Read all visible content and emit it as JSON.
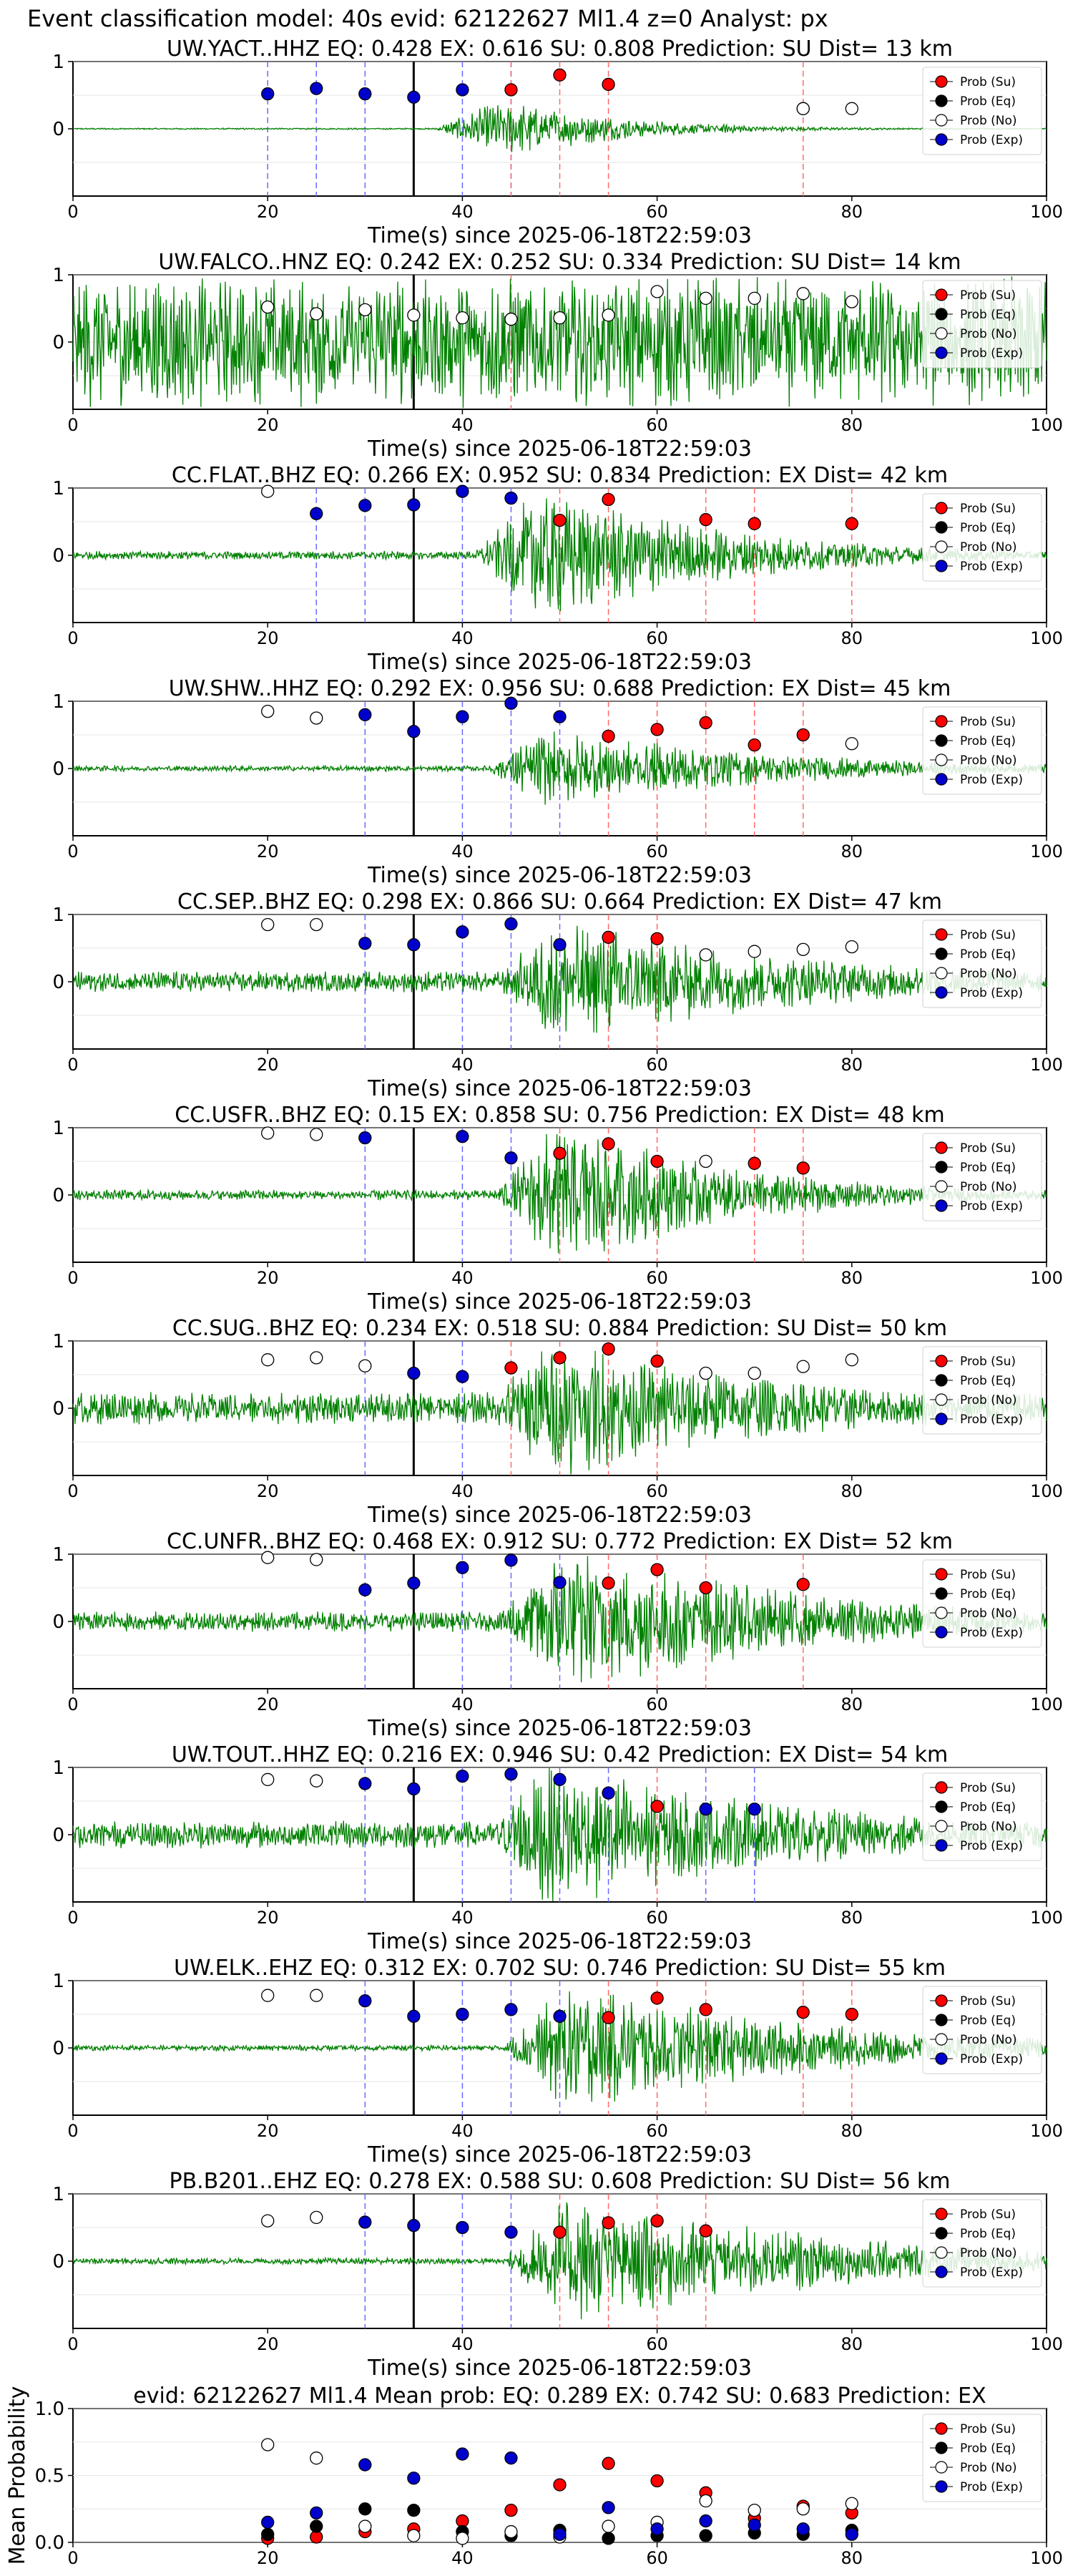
{
  "figure_title": "Event classification model: 40s evid: 62122627 Ml1.4 z=0 Analyst: px",
  "xlabel": "Time(s) since 2025-06-18T22:59:03",
  "legend": [
    "Prob (Su)",
    "Prob (Eq)",
    "Prob (No)",
    "Prob (Exp)"
  ],
  "colors": {
    "su": "#ff0000",
    "eq": "#000000",
    "no": "#ffffff",
    "exp": "#0000cd",
    "trace": "#008000",
    "marker_line": "#000000"
  },
  "chart_data": [
    {
      "type": "line",
      "title": "UW.YACT..HHZ   EQ: 0.428  EX: 0.616  SU: 0.808   Prediction: SU    Dist= 13 km",
      "xlim": [
        0,
        100
      ],
      "ylim": [
        -1,
        1
      ],
      "yticks": [
        "1",
        "0"
      ],
      "xticks": [
        "0",
        "20",
        "40",
        "60",
        "80",
        "100"
      ],
      "amp": 0.35,
      "env": "event",
      "start": 37,
      "end": 62,
      "noise": 0.03,
      "marker": 35,
      "exp_lines": [
        20,
        25,
        30,
        35,
        40,
        45
      ],
      "su_lines": [
        45,
        50,
        55,
        75
      ],
      "points": {
        "no": [
          [
            75,
            0.3
          ],
          [
            80,
            0.3
          ]
        ],
        "exp": [
          [
            20,
            0.52
          ],
          [
            25,
            0.6
          ],
          [
            30,
            0.52
          ],
          [
            35,
            0.47
          ],
          [
            40,
            0.58
          ]
        ],
        "su": [
          [
            45,
            0.58
          ],
          [
            50,
            0.8
          ],
          [
            55,
            0.66
          ],
          [
            75,
            0.3
          ]
        ]
      }
    },
    {
      "type": "line",
      "title": "UW.FALCO..HNZ   EQ: 0.242  EX: 0.252  SU: 0.334   Prediction: SU    Dist= 14 km",
      "xlim": [
        0,
        100
      ],
      "ylim": [
        -1,
        1
      ],
      "yticks": [
        "1",
        "0"
      ],
      "xticks": [
        "0",
        "20",
        "40",
        "60",
        "80",
        "100"
      ],
      "amp": 0.9,
      "env": "flat",
      "start": 0,
      "end": 100,
      "noise": 0.7,
      "marker": 35,
      "exp_lines": [],
      "su_lines": [
        45
      ],
      "points": {
        "no": [
          [
            20,
            0.52
          ],
          [
            25,
            0.42
          ],
          [
            30,
            0.48
          ],
          [
            35,
            0.4
          ],
          [
            40,
            0.36
          ],
          [
            45,
            0.34
          ],
          [
            50,
            0.36
          ],
          [
            55,
            0.4
          ],
          [
            60,
            0.75
          ],
          [
            65,
            0.65
          ],
          [
            70,
            0.65
          ],
          [
            75,
            0.72
          ],
          [
            80,
            0.6
          ]
        ],
        "exp": [],
        "su": [
          [
            45,
            0.34
          ]
        ]
      }
    },
    {
      "type": "line",
      "title": "CC.FLAT..BHZ   EQ: 0.266  EX: 0.952  SU: 0.834   Prediction: EX    Dist= 42 km",
      "xlim": [
        0,
        100
      ],
      "ylim": [
        -1,
        1
      ],
      "yticks": [
        "1",
        "0"
      ],
      "xticks": [
        "0",
        "20",
        "40",
        "60",
        "80",
        "100"
      ],
      "amp": 0.85,
      "env": "event",
      "start": 41,
      "end": 82,
      "noise": 0.07,
      "marker": 35,
      "exp_lines": [
        25,
        30,
        35,
        40,
        45
      ],
      "su_lines": [
        50,
        55,
        65,
        70,
        80
      ],
      "points": {
        "no": [
          [
            20,
            0.95
          ]
        ],
        "exp": [
          [
            25,
            0.62
          ],
          [
            30,
            0.74
          ],
          [
            35,
            0.75
          ],
          [
            40,
            0.95
          ],
          [
            45,
            0.85
          ]
        ],
        "su": [
          [
            50,
            0.52
          ],
          [
            55,
            0.83
          ],
          [
            65,
            0.53
          ],
          [
            70,
            0.47
          ],
          [
            80,
            0.47
          ]
        ]
      }
    },
    {
      "type": "line",
      "title": "UW.SHW..HHZ   EQ: 0.292  EX: 0.956  SU: 0.688   Prediction: EX    Dist= 45 km",
      "xlim": [
        0,
        100
      ],
      "ylim": [
        -1,
        1
      ],
      "yticks": [
        "1",
        "0"
      ],
      "xticks": [
        "0",
        "20",
        "40",
        "60",
        "80",
        "100"
      ],
      "amp": 0.5,
      "env": "event",
      "start": 42,
      "end": 92,
      "noise": 0.08,
      "marker": 35,
      "exp_lines": [
        30,
        35,
        40,
        45,
        50
      ],
      "su_lines": [
        55,
        60,
        65,
        70,
        75
      ],
      "points": {
        "no": [
          [
            20,
            0.85
          ],
          [
            25,
            0.75
          ],
          [
            80,
            0.37
          ]
        ],
        "exp": [
          [
            30,
            0.8
          ],
          [
            35,
            0.55
          ],
          [
            40,
            0.77
          ],
          [
            45,
            0.97
          ],
          [
            50,
            0.77
          ]
        ],
        "su": [
          [
            55,
            0.48
          ],
          [
            60,
            0.58
          ],
          [
            65,
            0.68
          ],
          [
            70,
            0.35
          ],
          [
            75,
            0.5
          ]
        ]
      }
    },
    {
      "type": "line",
      "title": "CC.SEP..BHZ   EQ: 0.298  EX: 0.866  SU: 0.664   Prediction: EX    Dist= 47 km",
      "xlim": [
        0,
        100
      ],
      "ylim": [
        -1,
        1
      ],
      "yticks": [
        "1",
        "0"
      ],
      "xticks": [
        "0",
        "20",
        "40",
        "60",
        "80",
        "100"
      ],
      "amp": 0.8,
      "env": "event",
      "start": 43,
      "end": 100,
      "noise": 0.18,
      "marker": 35,
      "exp_lines": [
        30,
        35,
        40,
        45,
        50
      ],
      "su_lines": [
        55,
        60
      ],
      "points": {
        "no": [
          [
            20,
            0.85
          ],
          [
            25,
            0.85
          ],
          [
            65,
            0.4
          ],
          [
            70,
            0.45
          ],
          [
            75,
            0.48
          ],
          [
            80,
            0.52
          ]
        ],
        "exp": [
          [
            30,
            0.57
          ],
          [
            35,
            0.55
          ],
          [
            40,
            0.74
          ],
          [
            45,
            0.86
          ],
          [
            50,
            0.55
          ]
        ],
        "su": [
          [
            55,
            0.66
          ],
          [
            60,
            0.64
          ]
        ]
      }
    },
    {
      "type": "line",
      "title": "CC.USFR..BHZ   EQ: 0.15  EX: 0.858  SU: 0.756   Prediction: EX    Dist= 48 km",
      "xlim": [
        0,
        100
      ],
      "ylim": [
        -1,
        1
      ],
      "yticks": [
        "1",
        "0"
      ],
      "xticks": [
        "0",
        "20",
        "40",
        "60",
        "80",
        "100"
      ],
      "amp": 0.9,
      "env": "event",
      "start": 43,
      "end": 82,
      "noise": 0.08,
      "marker": 35,
      "exp_lines": [
        30,
        35,
        40,
        45
      ],
      "su_lines": [
        50,
        55,
        60,
        70,
        75
      ],
      "points": {
        "no": [
          [
            20,
            0.92
          ],
          [
            25,
            0.9
          ],
          [
            65,
            0.5
          ]
        ],
        "exp": [
          [
            30,
            0.85
          ],
          [
            40,
            0.87
          ],
          [
            45,
            0.55
          ]
        ],
        "su": [
          [
            50,
            0.62
          ],
          [
            55,
            0.76
          ],
          [
            60,
            0.5
          ],
          [
            70,
            0.47
          ],
          [
            75,
            0.4
          ]
        ]
      }
    },
    {
      "type": "line",
      "title": "CC.SUG..BHZ   EQ: 0.234  EX: 0.518  SU: 0.884   Prediction: SU    Dist= 50 km",
      "xlim": [
        0,
        100
      ],
      "ylim": [
        -1,
        1
      ],
      "yticks": [
        "1",
        "0"
      ],
      "xticks": [
        "0",
        "20",
        "40",
        "60",
        "80",
        "100"
      ],
      "amp": 0.9,
      "env": "event",
      "start": 42,
      "end": 100,
      "noise": 0.25,
      "marker": 35,
      "exp_lines": [
        30,
        35,
        40
      ],
      "su_lines": [
        45,
        50,
        55,
        60
      ],
      "points": {
        "no": [
          [
            20,
            0.72
          ],
          [
            25,
            0.75
          ],
          [
            30,
            0.63
          ],
          [
            65,
            0.52
          ],
          [
            70,
            0.52
          ],
          [
            75,
            0.62
          ],
          [
            80,
            0.72
          ]
        ],
        "exp": [
          [
            35,
            0.52
          ],
          [
            40,
            0.47
          ]
        ],
        "su": [
          [
            45,
            0.6
          ],
          [
            50,
            0.75
          ],
          [
            55,
            0.88
          ],
          [
            60,
            0.7
          ]
        ]
      }
    },
    {
      "type": "line",
      "title": "CC.UNFR..BHZ   EQ: 0.468  EX: 0.912  SU: 0.772   Prediction: EX    Dist= 52 km",
      "xlim": [
        0,
        100
      ],
      "ylim": [
        -1,
        1
      ],
      "yticks": [
        "1",
        "0"
      ],
      "xticks": [
        "0",
        "20",
        "40",
        "60",
        "80",
        "100"
      ],
      "amp": 0.95,
      "env": "event",
      "start": 43,
      "end": 100,
      "noise": 0.15,
      "marker": 35,
      "exp_lines": [
        30,
        35,
        40,
        45,
        50
      ],
      "su_lines": [
        55,
        60,
        65,
        75
      ],
      "points": {
        "no": [
          [
            20,
            0.95
          ],
          [
            25,
            0.92
          ]
        ],
        "exp": [
          [
            30,
            0.47
          ],
          [
            35,
            0.57
          ],
          [
            40,
            0.8
          ],
          [
            45,
            0.91
          ],
          [
            50,
            0.58
          ]
        ],
        "su": [
          [
            55,
            0.57
          ],
          [
            60,
            0.77
          ],
          [
            65,
            0.5
          ],
          [
            75,
            0.55
          ]
        ]
      }
    },
    {
      "type": "line",
      "title": "UW.TOUT..HHZ   EQ: 0.216  EX: 0.946  SU: 0.42   Prediction: EX    Dist= 54 km",
      "xlim": [
        0,
        100
      ],
      "ylim": [
        -1,
        1
      ],
      "yticks": [
        "1",
        "0"
      ],
      "xticks": [
        "0",
        "20",
        "40",
        "60",
        "80",
        "100"
      ],
      "amp": 0.95,
      "env": "event",
      "start": 42,
      "end": 100,
      "noise": 0.2,
      "marker": 35,
      "exp_lines": [
        30,
        35,
        40,
        45,
        50,
        55,
        65,
        70
      ],
      "su_lines": [
        60
      ],
      "points": {
        "no": [
          [
            20,
            0.82
          ],
          [
            25,
            0.8
          ]
        ],
        "exp": [
          [
            30,
            0.76
          ],
          [
            35,
            0.68
          ],
          [
            40,
            0.87
          ],
          [
            45,
            0.9
          ],
          [
            50,
            0.82
          ],
          [
            55,
            0.62
          ],
          [
            65,
            0.38
          ],
          [
            70,
            0.38
          ]
        ],
        "su": [
          [
            60,
            0.42
          ]
        ]
      }
    },
    {
      "type": "line",
      "title": "UW.ELK..EHZ   EQ: 0.312  EX: 0.702  SU: 0.746   Prediction: SU    Dist= 55 km",
      "xlim": [
        0,
        100
      ],
      "ylim": [
        -1,
        1
      ],
      "yticks": [
        "1",
        "0"
      ],
      "xticks": [
        "0",
        "20",
        "40",
        "60",
        "80",
        "100"
      ],
      "amp": 0.8,
      "env": "event",
      "start": 44,
      "end": 100,
      "noise": 0.05,
      "marker": 35,
      "exp_lines": [
        30,
        35,
        40,
        45,
        50
      ],
      "su_lines": [
        55,
        60,
        65,
        75,
        80
      ],
      "points": {
        "no": [
          [
            20,
            0.78
          ],
          [
            25,
            0.78
          ]
        ],
        "exp": [
          [
            30,
            0.7
          ],
          [
            35,
            0.47
          ],
          [
            40,
            0.5
          ],
          [
            45,
            0.57
          ],
          [
            50,
            0.47
          ]
        ],
        "su": [
          [
            55,
            0.45
          ],
          [
            60,
            0.74
          ],
          [
            65,
            0.57
          ],
          [
            75,
            0.53
          ],
          [
            80,
            0.5
          ]
        ]
      }
    },
    {
      "type": "line",
      "title": "PB.B201..EHZ   EQ: 0.278  EX: 0.588  SU: 0.608   Prediction: SU    Dist= 56 km",
      "xlim": [
        0,
        100
      ],
      "ylim": [
        -1,
        1
      ],
      "yticks": [
        "1",
        "0"
      ],
      "xticks": [
        "0",
        "20",
        "40",
        "60",
        "80",
        "100"
      ],
      "amp": 0.9,
      "env": "event",
      "start": 44,
      "end": 100,
      "noise": 0.05,
      "marker": 35,
      "exp_lines": [
        30,
        35,
        40,
        45
      ],
      "su_lines": [
        50,
        55,
        60,
        65
      ],
      "points": {
        "no": [
          [
            20,
            0.6
          ],
          [
            25,
            0.65
          ]
        ],
        "exp": [
          [
            30,
            0.58
          ],
          [
            35,
            0.53
          ],
          [
            40,
            0.5
          ],
          [
            45,
            0.43
          ]
        ],
        "su": [
          [
            50,
            0.43
          ],
          [
            55,
            0.57
          ],
          [
            60,
            0.6
          ],
          [
            65,
            0.45
          ]
        ]
      }
    },
    {
      "type": "scatter",
      "title": "evid: 62122627   Ml1.4    Mean prob:    EQ: 0.289  EX: 0.742  SU: 0.683   Prediction: EX",
      "ylabel": "Mean Probability",
      "xlim": [
        0,
        100
      ],
      "ylim": [
        0,
        1
      ],
      "yticks": [
        "0.0",
        "0.5",
        "1.0"
      ],
      "xticks": [
        "0",
        "20",
        "40",
        "60",
        "80",
        "100"
      ],
      "points": {
        "su": [
          [
            20,
            0.03
          ],
          [
            25,
            0.04
          ],
          [
            30,
            0.08
          ],
          [
            35,
            0.1
          ],
          [
            40,
            0.16
          ],
          [
            45,
            0.24
          ],
          [
            50,
            0.43
          ],
          [
            55,
            0.59
          ],
          [
            60,
            0.46
          ],
          [
            65,
            0.37
          ],
          [
            70,
            0.18
          ],
          [
            75,
            0.27
          ],
          [
            80,
            0.22
          ]
        ],
        "eq": [
          [
            20,
            0.06
          ],
          [
            25,
            0.12
          ],
          [
            30,
            0.25
          ],
          [
            35,
            0.24
          ],
          [
            40,
            0.08
          ],
          [
            45,
            0.05
          ],
          [
            50,
            0.09
          ],
          [
            55,
            0.03
          ],
          [
            60,
            0.05
          ],
          [
            65,
            0.05
          ],
          [
            70,
            0.07
          ],
          [
            75,
            0.06
          ],
          [
            80,
            0.09
          ]
        ],
        "no": [
          [
            20,
            0.73
          ],
          [
            25,
            0.63
          ],
          [
            30,
            0.12
          ],
          [
            35,
            0.05
          ],
          [
            40,
            0.03
          ],
          [
            45,
            0.08
          ],
          [
            50,
            0.04
          ],
          [
            55,
            0.12
          ],
          [
            60,
            0.15
          ],
          [
            65,
            0.31
          ],
          [
            70,
            0.24
          ],
          [
            75,
            0.25
          ],
          [
            80,
            0.29
          ]
        ],
        "exp": [
          [
            20,
            0.15
          ],
          [
            25,
            0.22
          ],
          [
            30,
            0.58
          ],
          [
            35,
            0.48
          ],
          [
            40,
            0.66
          ],
          [
            45,
            0.63
          ],
          [
            50,
            0.06
          ],
          [
            55,
            0.26
          ],
          [
            60,
            0.1
          ],
          [
            65,
            0.16
          ],
          [
            70,
            0.13
          ],
          [
            75,
            0.1
          ],
          [
            80,
            0.06
          ]
        ]
      }
    }
  ]
}
